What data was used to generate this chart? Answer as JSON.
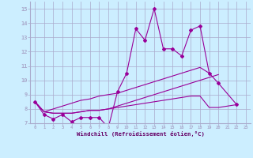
{
  "xlabel": "Windchill (Refroidissement éolien,°C)",
  "background_color": "#cceeff",
  "grid_color": "#aaaacc",
  "line_color": "#990099",
  "x": [
    0,
    1,
    2,
    3,
    4,
    5,
    6,
    7,
    8,
    9,
    10,
    11,
    12,
    13,
    14,
    15,
    16,
    17,
    18,
    19,
    20,
    21,
    22,
    23
  ],
  "y_main": [
    8.5,
    7.6,
    7.3,
    7.6,
    7.1,
    7.4,
    7.4,
    7.4,
    6.7,
    9.2,
    10.5,
    13.6,
    12.8,
    15.0,
    12.2,
    12.2,
    11.7,
    13.5,
    13.8,
    10.5,
    9.8,
    null,
    8.3,
    null
  ],
  "y_line1": [
    8.5,
    7.8,
    8.0,
    8.2,
    8.4,
    8.6,
    8.7,
    8.9,
    9.0,
    9.1,
    9.3,
    9.5,
    9.7,
    9.9,
    10.1,
    10.3,
    10.5,
    10.7,
    10.9,
    10.5,
    null,
    null,
    null,
    null
  ],
  "y_line2": [
    8.5,
    7.8,
    7.7,
    7.7,
    7.7,
    7.8,
    7.9,
    7.9,
    8.0,
    8.1,
    8.2,
    8.3,
    8.4,
    8.5,
    8.6,
    8.7,
    8.8,
    8.9,
    8.9,
    8.1,
    8.1,
    null,
    8.3,
    null
  ],
  "y_line3": [
    8.5,
    7.8,
    7.7,
    7.7,
    7.7,
    7.8,
    7.9,
    7.9,
    8.0,
    8.2,
    8.4,
    8.6,
    8.8,
    9.0,
    9.2,
    9.4,
    9.6,
    9.8,
    10.0,
    10.2,
    10.4,
    null,
    null,
    null
  ],
  "ylim": [
    7.0,
    15.5
  ],
  "xlim": [
    -0.5,
    23.5
  ],
  "yticks": [
    7,
    8,
    9,
    10,
    11,
    12,
    13,
    14,
    15
  ]
}
